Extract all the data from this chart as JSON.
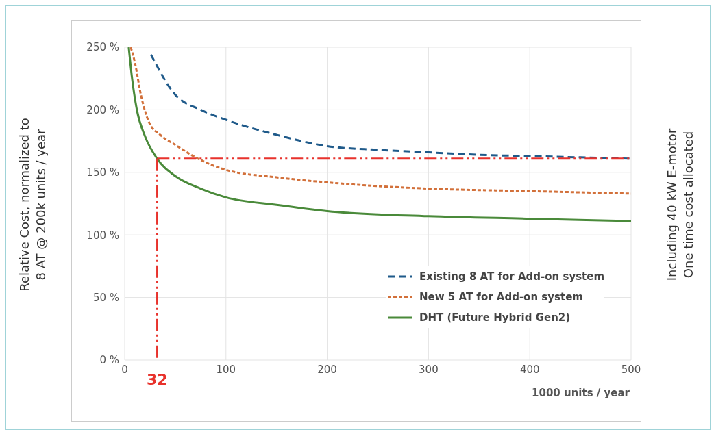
{
  "chart_data": {
    "type": "line",
    "xlabel": "1000 units / year",
    "ylabel": "Relative Cost, normalized to\n8 AT @ 200k units / year",
    "annotations": [
      "Including 40 kW E-motor\nOne time cost allocated"
    ],
    "xlim": [
      0,
      500
    ],
    "xticks": [
      0,
      100,
      200,
      300,
      400,
      500
    ],
    "ylim": [
      0,
      250
    ],
    "yticks": [
      {
        "value": 0,
        "label": "0 %"
      },
      {
        "value": 50,
        "label": "50 %"
      },
      {
        "value": 100,
        "label": "100 %"
      },
      {
        "value": 150,
        "label": "150 %"
      },
      {
        "value": 200,
        "label": "200 %"
      },
      {
        "value": 250,
        "label": "250 %"
      }
    ],
    "grid": true,
    "legend": "right",
    "marker": "none",
    "series": [
      {
        "name": "Existing 8 AT for Add-on system",
        "color": "#1f5a8a",
        "line_style": "dashed",
        "x": [
          26,
          50,
          75,
          100,
          150,
          200,
          250,
          300,
          350,
          400,
          450,
          500
        ],
        "values": [
          244,
          212,
          200,
          192,
          180,
          171,
          168,
          166,
          164,
          163,
          162,
          161
        ]
      },
      {
        "name": "New 5 AT for Add-on system",
        "color": "#d2703a",
        "line_style": "dotted",
        "x": [
          6,
          10,
          16,
          24,
          35,
          50,
          70,
          100,
          150,
          200,
          250,
          300,
          400,
          500
        ],
        "values": [
          250,
          238,
          212,
          190,
          180,
          172,
          162,
          152,
          146,
          142,
          139,
          137,
          135,
          133
        ]
      },
      {
        "name": "DHT (Future Hybrid Gen2)",
        "color": "#4a8a3a",
        "line_style": "solid",
        "x": [
          4,
          7,
          12,
          20,
          32,
          50,
          75,
          100,
          150,
          200,
          300,
          400,
          500
        ],
        "values": [
          250,
          227,
          200,
          179,
          161,
          147,
          137,
          130,
          124,
          119,
          115,
          113,
          111
        ]
      }
    ],
    "ref_lines": [
      {
        "axis": "y",
        "value": 161,
        "color": "#e8322c",
        "line_style": "dashed"
      },
      {
        "axis": "x",
        "value": 32,
        "label": "32",
        "color": "#e8322c",
        "line_style": "dashed"
      }
    ]
  }
}
